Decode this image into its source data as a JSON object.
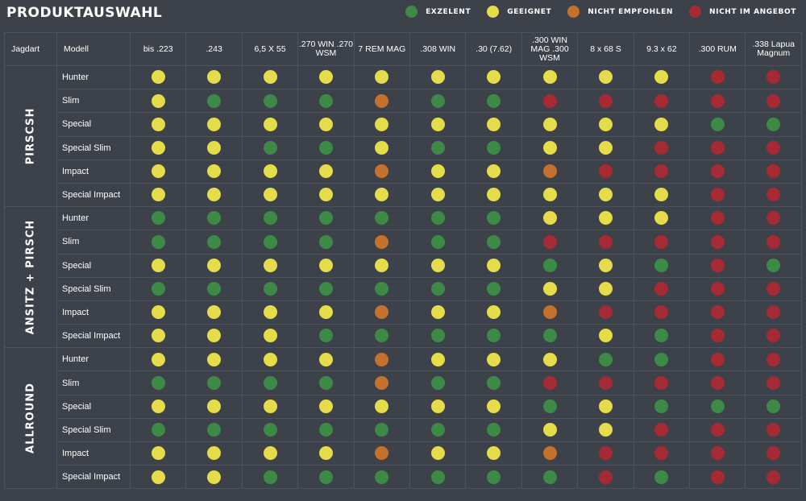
{
  "title": "PRODUKTAUSWAHL",
  "colors": {
    "g": "#3c8a46",
    "y": "#e4dc48",
    "o": "#c4712e",
    "r": "#a52a33"
  },
  "legend": [
    {
      "key": "g",
      "label": "EXZELENT"
    },
    {
      "key": "y",
      "label": "GEEIGNET"
    },
    {
      "key": "o",
      "label": "NICHT EMPFOHLEN"
    },
    {
      "key": "r",
      "label": "NICHT IM ANGEBOT"
    }
  ],
  "headers": {
    "group": "Jagdart",
    "model": "Modell",
    "calibers": [
      "bis .223",
      ".243",
      "6,5 X 55",
      ".270 WIN .270 WSM",
      "7 REM MAG",
      ".308 WIN",
      ".30 (7.62)",
      ".300 WIN MAG .300 WSM",
      "8 x 68 S",
      "9.3 x 62",
      ".300 RUM",
      ".338 Lapua Magnum"
    ]
  },
  "groups": [
    {
      "name": "PIRSCSH",
      "rows": [
        {
          "model": "Hunter",
          "ratings": [
            "y",
            "y",
            "y",
            "y",
            "y",
            "y",
            "y",
            "y",
            "y",
            "y",
            "r",
            "r"
          ]
        },
        {
          "model": "Slim",
          "ratings": [
            "y",
            "g",
            "g",
            "g",
            "o",
            "g",
            "g",
            "r",
            "r",
            "r",
            "r",
            "r"
          ]
        },
        {
          "model": "Special",
          "ratings": [
            "y",
            "y",
            "y",
            "y",
            "y",
            "y",
            "y",
            "y",
            "y",
            "y",
            "g",
            "g"
          ]
        },
        {
          "model": "Special Slim",
          "ratings": [
            "y",
            "y",
            "g",
            "g",
            "y",
            "g",
            "g",
            "y",
            "y",
            "r",
            "r",
            "r"
          ]
        },
        {
          "model": "Impact",
          "ratings": [
            "y",
            "y",
            "y",
            "y",
            "o",
            "y",
            "y",
            "o",
            "r",
            "r",
            "r",
            "r"
          ]
        },
        {
          "model": "Special Impact",
          "ratings": [
            "y",
            "y",
            "y",
            "y",
            "y",
            "y",
            "y",
            "y",
            "y",
            "y",
            "r",
            "r"
          ]
        }
      ]
    },
    {
      "name": "ANSITZ + PIRSCH",
      "rows": [
        {
          "model": "Hunter",
          "ratings": [
            "g",
            "g",
            "g",
            "g",
            "g",
            "g",
            "g",
            "y",
            "y",
            "y",
            "r",
            "r"
          ]
        },
        {
          "model": "Slim",
          "ratings": [
            "g",
            "g",
            "g",
            "g",
            "o",
            "g",
            "g",
            "r",
            "r",
            "r",
            "r",
            "r"
          ]
        },
        {
          "model": "Special",
          "ratings": [
            "y",
            "y",
            "y",
            "y",
            "y",
            "y",
            "y",
            "g",
            "y",
            "g",
            "r",
            "g"
          ]
        },
        {
          "model": "Special Slim",
          "ratings": [
            "g",
            "g",
            "g",
            "g",
            "g",
            "g",
            "g",
            "y",
            "y",
            "r",
            "r",
            "r"
          ]
        },
        {
          "model": "Impact",
          "ratings": [
            "y",
            "y",
            "y",
            "y",
            "o",
            "y",
            "y",
            "o",
            "r",
            "r",
            "r",
            "r"
          ]
        },
        {
          "model": "Special Impact",
          "ratings": [
            "y",
            "y",
            "y",
            "g",
            "g",
            "g",
            "g",
            "g",
            "y",
            "g",
            "r",
            "r"
          ]
        }
      ]
    },
    {
      "name": "ALLROUND",
      "rows": [
        {
          "model": "Hunter",
          "ratings": [
            "y",
            "y",
            "y",
            "y",
            "o",
            "y",
            "y",
            "y",
            "g",
            "g",
            "r",
            "r"
          ]
        },
        {
          "model": "Slim",
          "ratings": [
            "g",
            "g",
            "g",
            "g",
            "o",
            "g",
            "g",
            "r",
            "r",
            "r",
            "r",
            "r"
          ]
        },
        {
          "model": "Special",
          "ratings": [
            "y",
            "y",
            "y",
            "y",
            "y",
            "y",
            "y",
            "g",
            "y",
            "g",
            "g",
            "g"
          ]
        },
        {
          "model": "Special Slim",
          "ratings": [
            "g",
            "g",
            "g",
            "g",
            "g",
            "g",
            "g",
            "y",
            "y",
            "r",
            "r",
            "r"
          ]
        },
        {
          "model": "Impact",
          "ratings": [
            "y",
            "y",
            "y",
            "y",
            "o",
            "y",
            "y",
            "o",
            "r",
            "r",
            "r",
            "r"
          ]
        },
        {
          "model": "Special Impact",
          "ratings": [
            "y",
            "y",
            "g",
            "g",
            "g",
            "g",
            "g",
            "g",
            "r",
            "g",
            "r",
            "r"
          ]
        }
      ]
    }
  ]
}
